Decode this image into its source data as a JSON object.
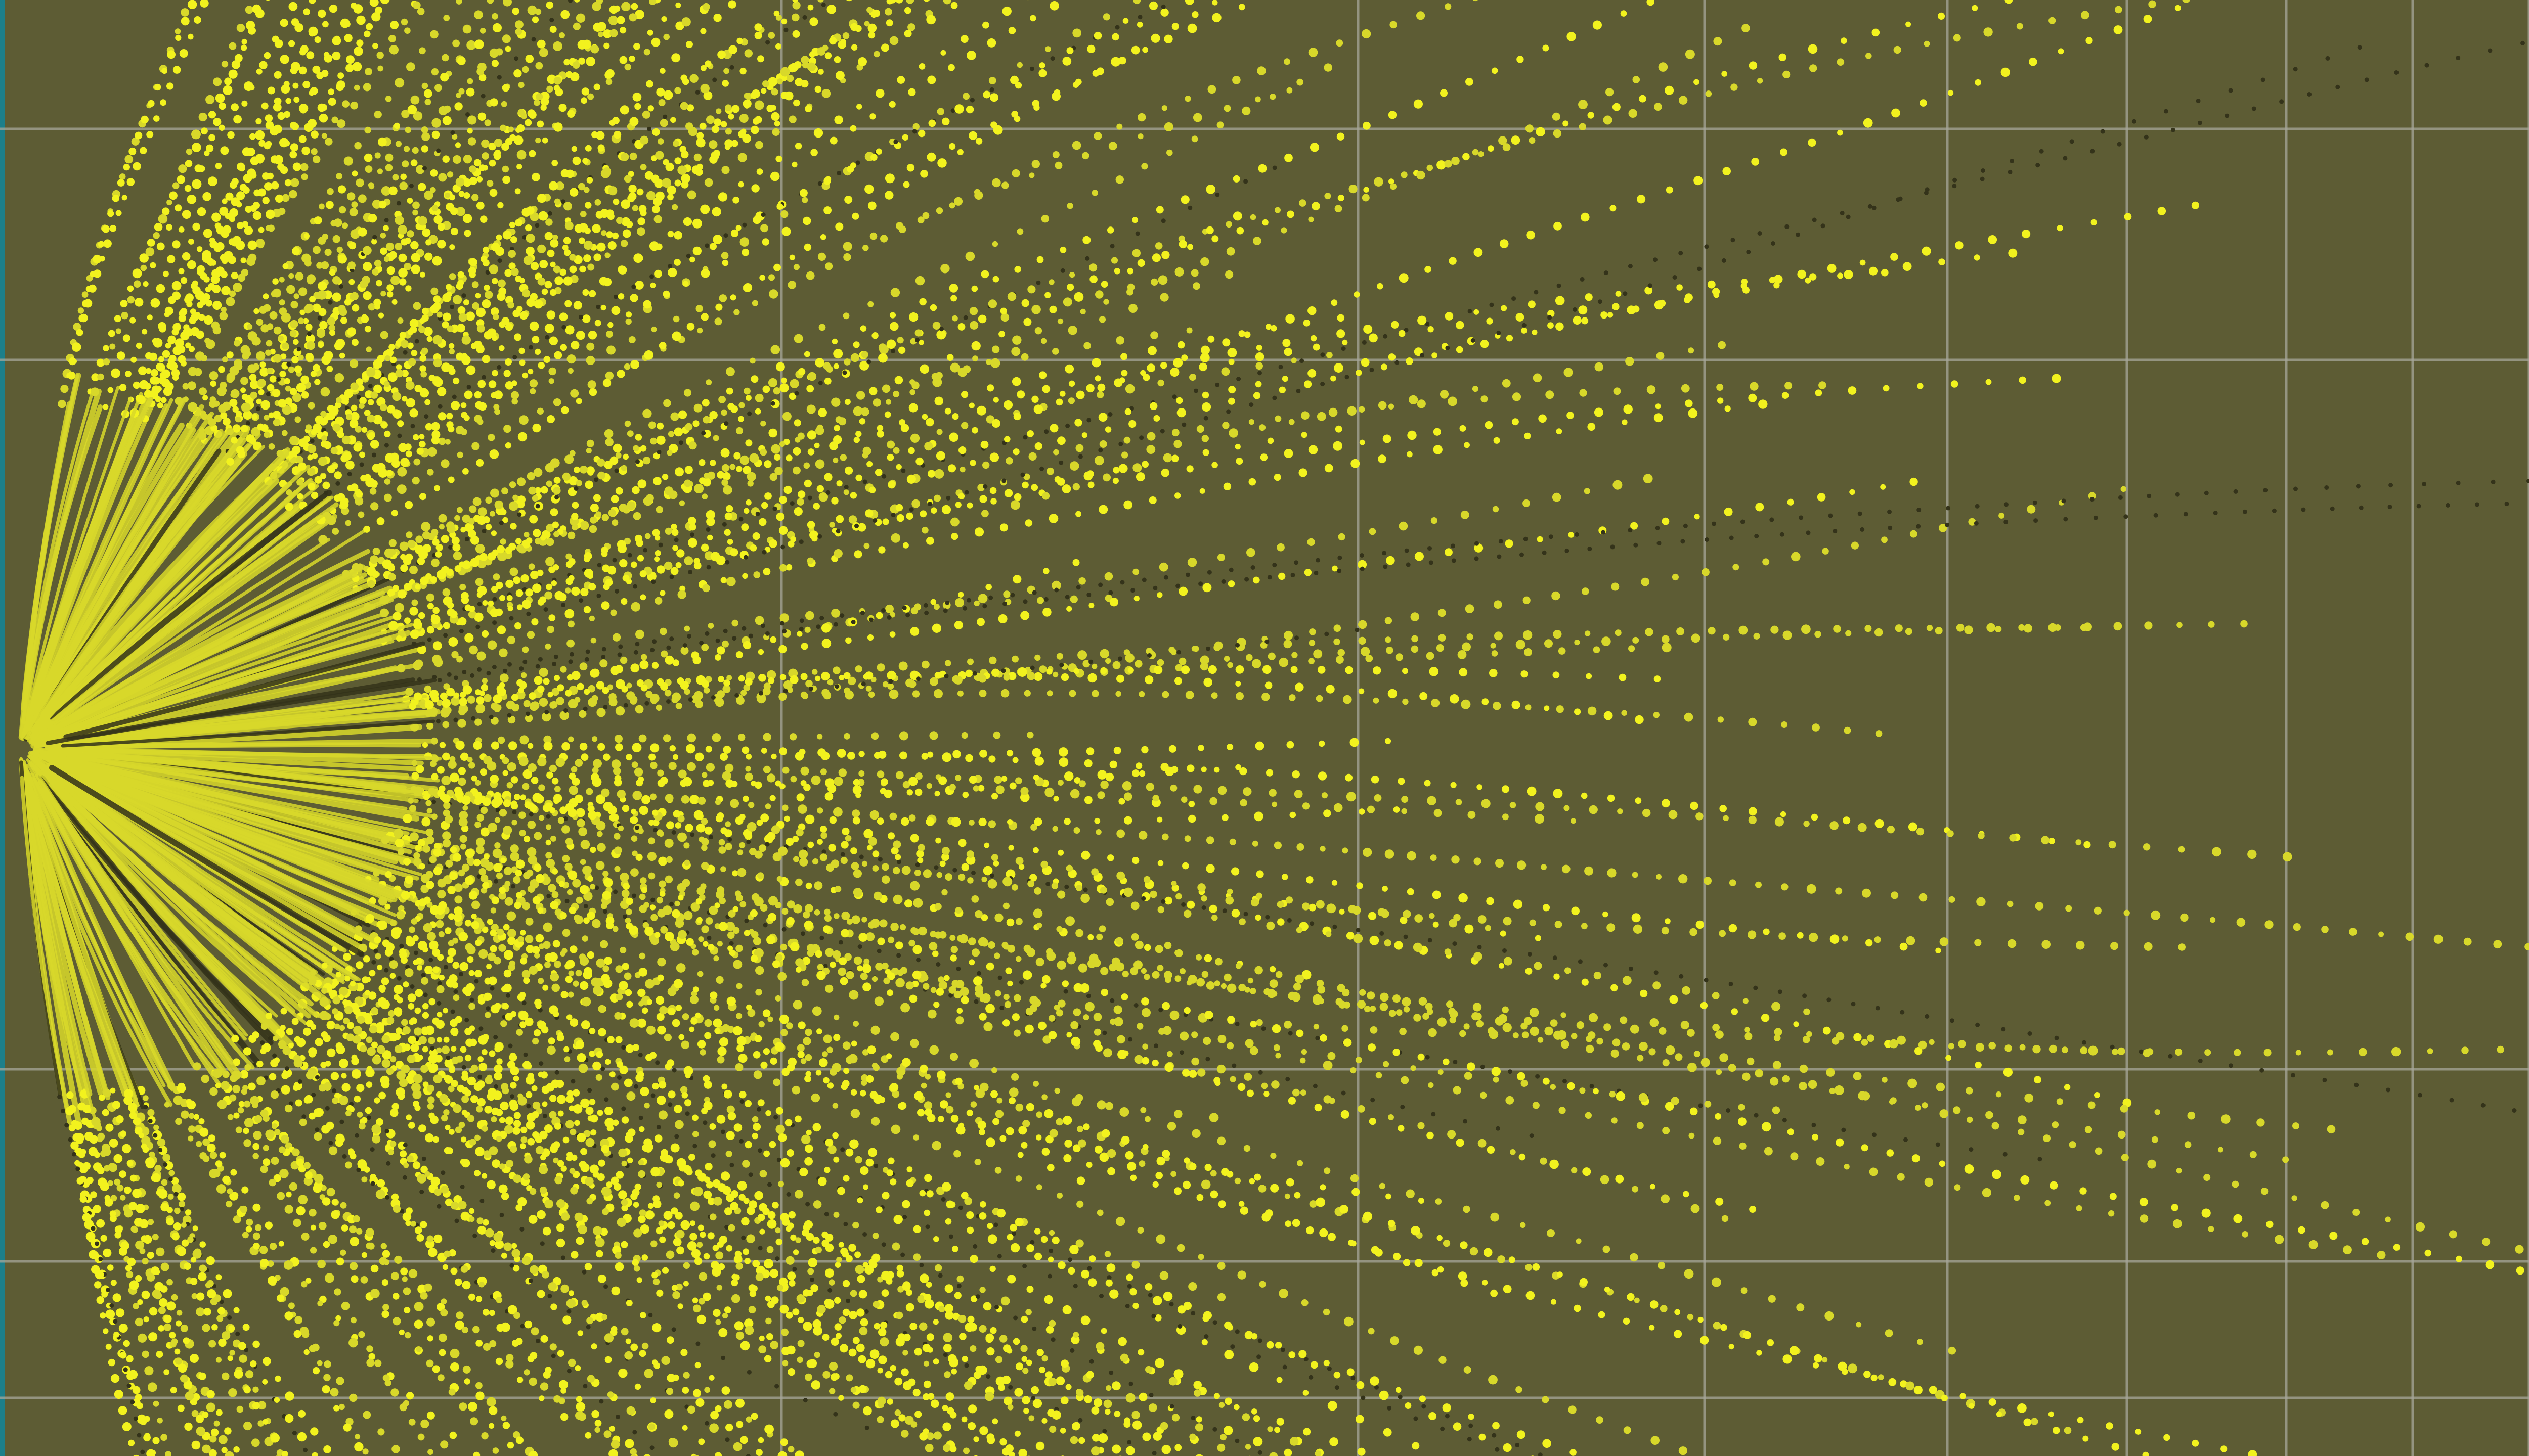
{
  "image": {
    "kind": "particle-trajectory visualization",
    "colors": {
      "background": "#5d5c34",
      "grid": "#a7a79a",
      "bright_dot": "#f2f21e",
      "mid_dot": "#d8d82a",
      "dark_dot": "#34331a",
      "left_edge_accent": "#1d7f8a"
    },
    "grid_visible": true,
    "text_visible": false
  }
}
